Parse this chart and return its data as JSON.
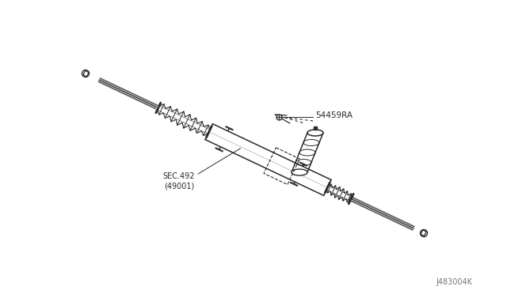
{
  "bg_color": "#ffffff",
  "fig_width": 6.4,
  "fig_height": 3.72,
  "dpi": 100,
  "diagram_id": "J483004K",
  "label_54459RA": "54459RA",
  "label_sec": "SEC.492",
  "label_sec2": "(49001)",
  "line_color": "#2a2a2a",
  "text_color": "#2a2a2a",
  "light_gray": "#cccccc",
  "mid_gray": "#888888"
}
